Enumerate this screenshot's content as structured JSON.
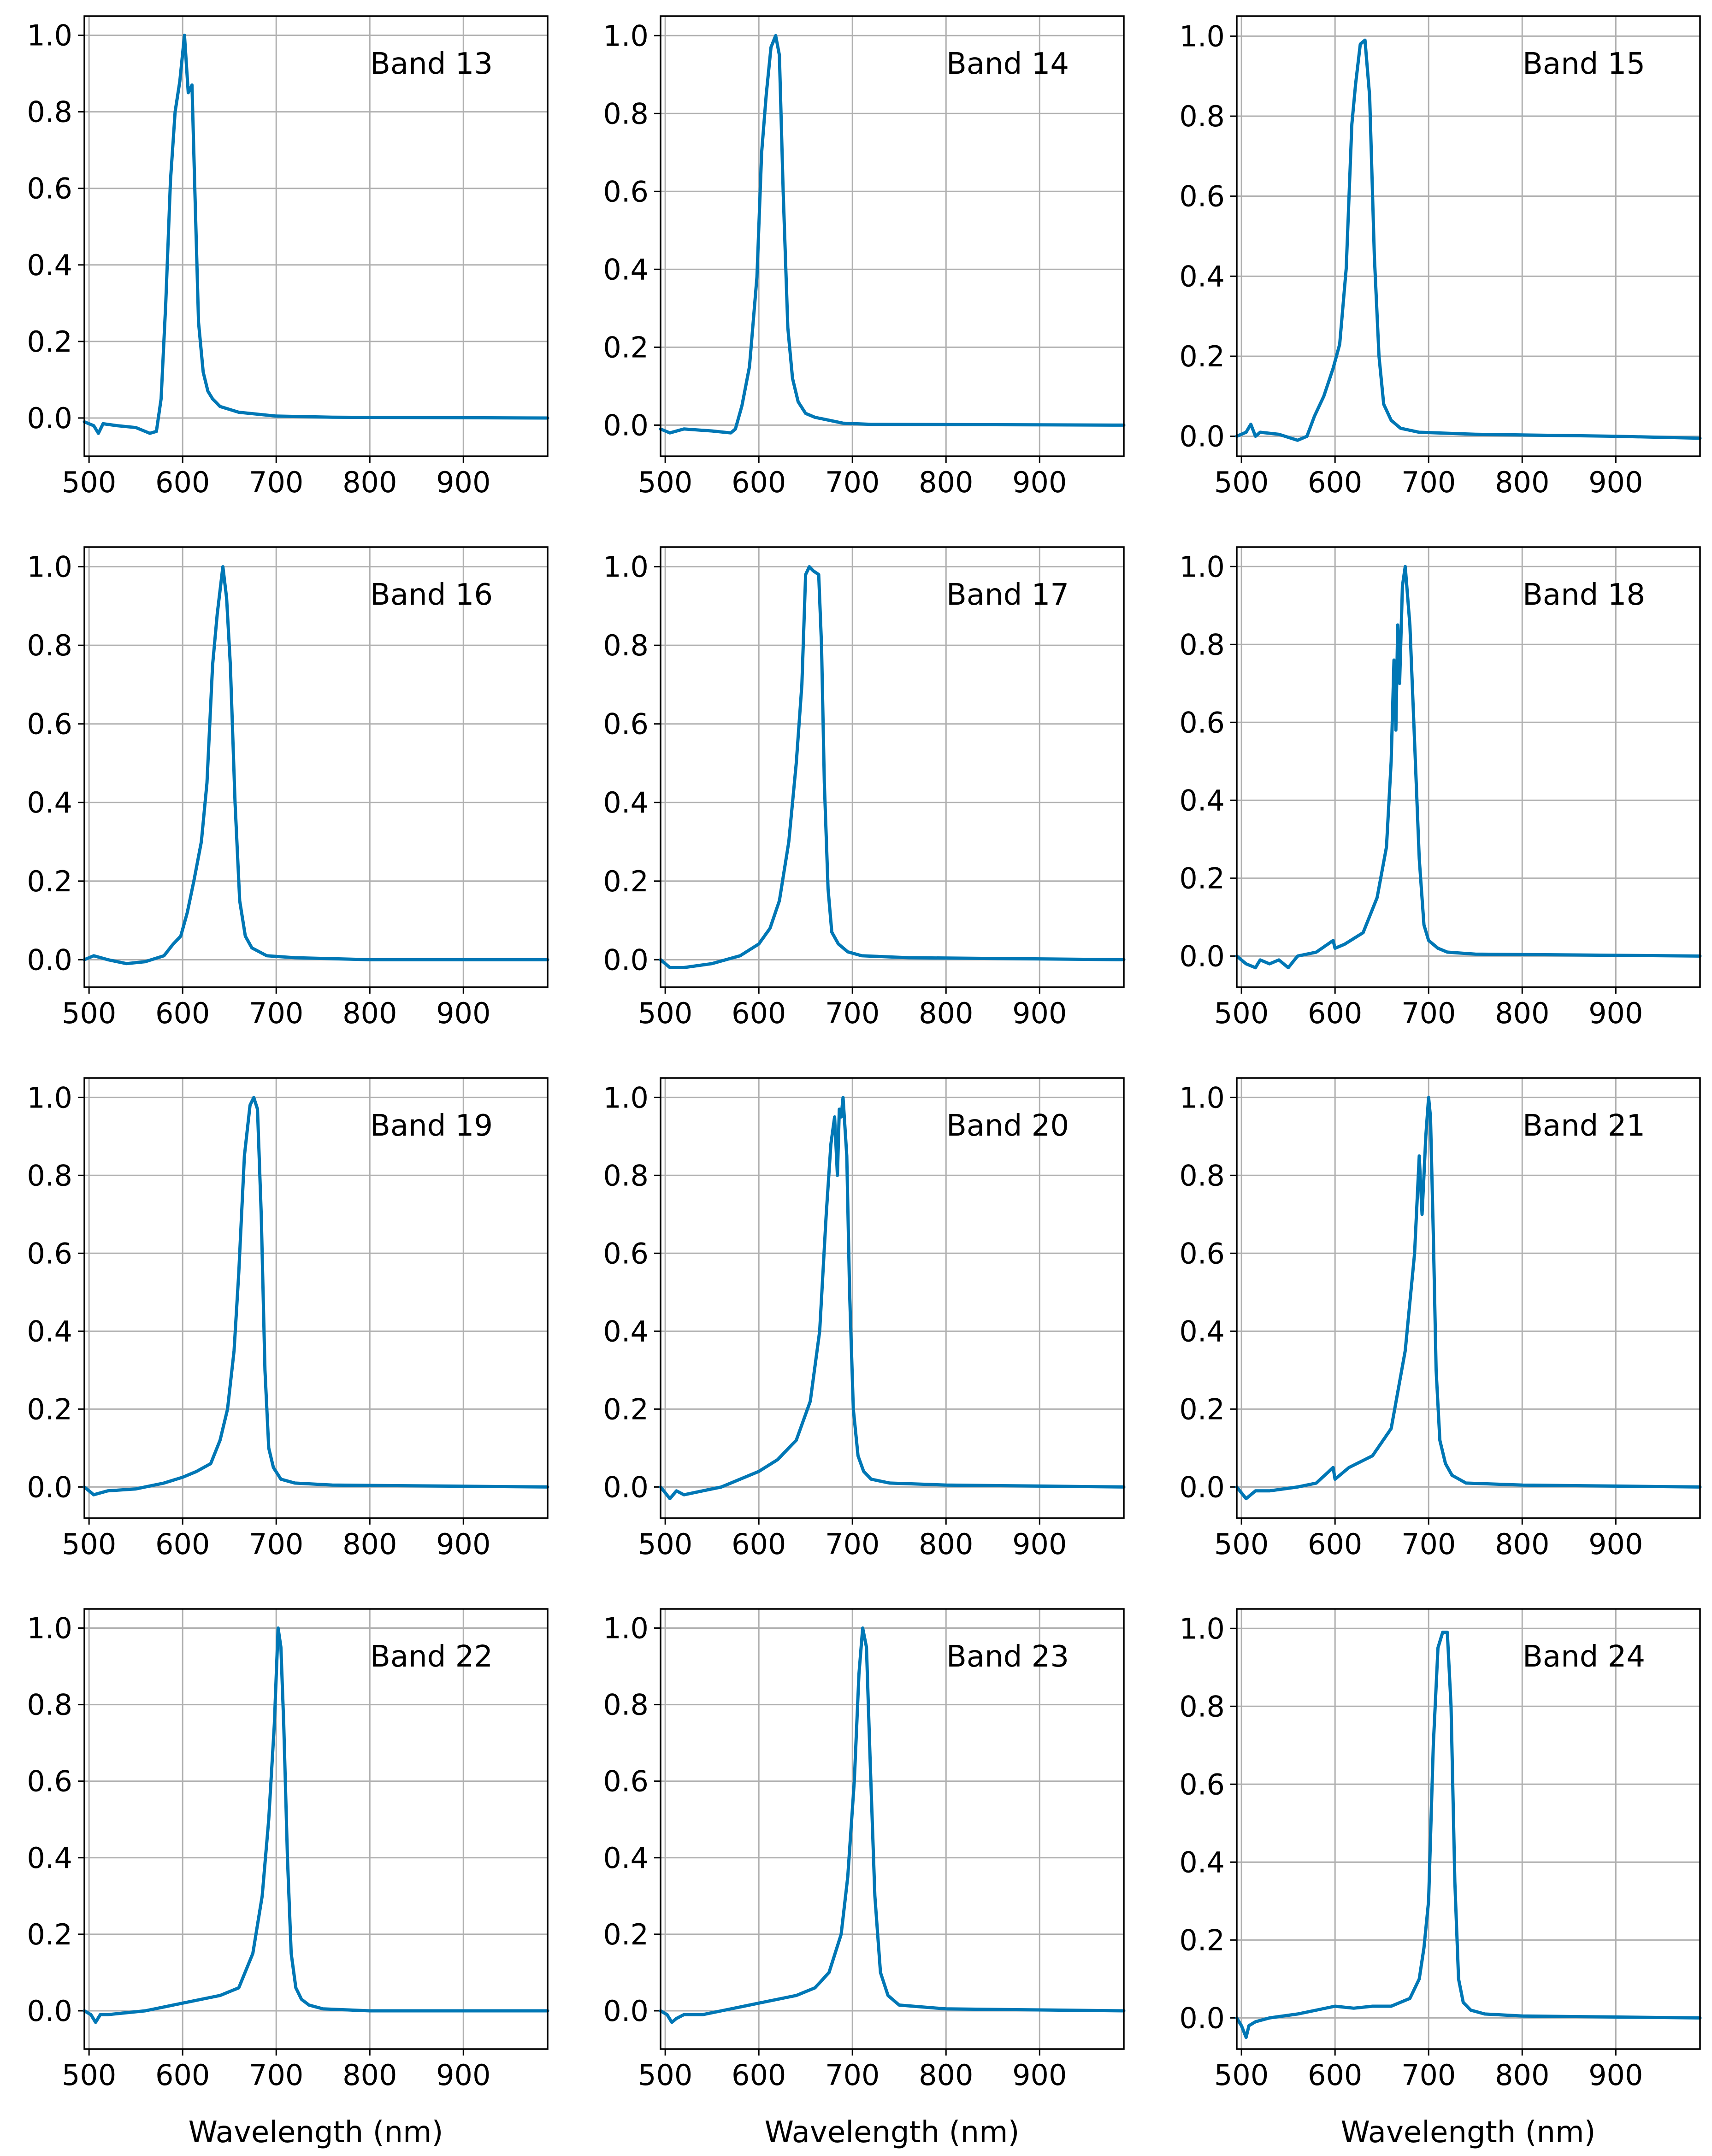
{
  "figure": {
    "xlabel": "Wavelength (nm)",
    "line_color": "#0077b5",
    "grid_color": "#b0b0b0"
  },
  "chart_data": [
    {
      "type": "line",
      "label": "Band 13",
      "xlabel": "",
      "ylabel": "",
      "xlim": [
        495,
        990
      ],
      "ylim": [
        -0.1,
        1.05
      ],
      "xticks": [
        500,
        600,
        700,
        800,
        900
      ],
      "yticks": [
        0.0,
        0.2,
        0.4,
        0.6,
        0.8,
        1.0
      ],
      "grid": true,
      "x": [
        495,
        505,
        510,
        515,
        530,
        550,
        565,
        572,
        577,
        582,
        587,
        592,
        597,
        602,
        606,
        610,
        613,
        617,
        622,
        627,
        632,
        640,
        660,
        680,
        700,
        760,
        990
      ],
      "y": [
        -0.01,
        -0.02,
        -0.04,
        -0.015,
        -0.02,
        -0.025,
        -0.04,
        -0.035,
        0.05,
        0.3,
        0.62,
        0.8,
        0.88,
        1.0,
        0.85,
        0.87,
        0.6,
        0.25,
        0.12,
        0.07,
        0.05,
        0.03,
        0.015,
        0.01,
        0.005,
        0.002,
        0.0
      ]
    },
    {
      "type": "line",
      "label": "Band 14",
      "xlabel": "",
      "ylabel": "",
      "xlim": [
        495,
        990
      ],
      "ylim": [
        -0.08,
        1.05
      ],
      "xticks": [
        500,
        600,
        700,
        800,
        900
      ],
      "yticks": [
        0.0,
        0.2,
        0.4,
        0.6,
        0.8,
        1.0
      ],
      "grid": true,
      "x": [
        495,
        505,
        520,
        550,
        570,
        575,
        582,
        590,
        598,
        603,
        608,
        613,
        618,
        622,
        626,
        631,
        636,
        642,
        650,
        660,
        670,
        690,
        720,
        990
      ],
      "y": [
        -0.01,
        -0.02,
        -0.01,
        -0.015,
        -0.02,
        -0.01,
        0.05,
        0.15,
        0.38,
        0.7,
        0.85,
        0.97,
        1.0,
        0.95,
        0.6,
        0.25,
        0.12,
        0.06,
        0.03,
        0.02,
        0.015,
        0.005,
        0.002,
        0.0
      ]
    },
    {
      "type": "line",
      "label": "Band 15",
      "xlabel": "",
      "ylabel": "",
      "xlim": [
        495,
        990
      ],
      "ylim": [
        -0.05,
        1.05
      ],
      "xticks": [
        500,
        600,
        700,
        800,
        900
      ],
      "yticks": [
        0.0,
        0.2,
        0.4,
        0.6,
        0.8,
        1.0
      ],
      "grid": true,
      "x": [
        495,
        505,
        510,
        515,
        520,
        540,
        560,
        570,
        578,
        588,
        598,
        605,
        612,
        618,
        622,
        627,
        632,
        637,
        642,
        647,
        652,
        660,
        670,
        690,
        750,
        900,
        990
      ],
      "y": [
        0.0,
        0.01,
        0.03,
        0.0,
        0.01,
        0.005,
        -0.01,
        0.0,
        0.05,
        0.1,
        0.17,
        0.23,
        0.42,
        0.78,
        0.88,
        0.98,
        0.99,
        0.85,
        0.45,
        0.2,
        0.08,
        0.04,
        0.02,
        0.01,
        0.005,
        0.0,
        -0.005
      ]
    },
    {
      "type": "line",
      "label": "Band 16",
      "xlabel": "",
      "ylabel": "",
      "xlim": [
        495,
        990
      ],
      "ylim": [
        -0.07,
        1.05
      ],
      "xticks": [
        500,
        600,
        700,
        800,
        900
      ],
      "yticks": [
        0.0,
        0.2,
        0.4,
        0.6,
        0.8,
        1.0
      ],
      "grid": true,
      "x": [
        495,
        505,
        520,
        540,
        560,
        580,
        590,
        598,
        605,
        612,
        620,
        626,
        632,
        637,
        643,
        647,
        651,
        656,
        661,
        667,
        674,
        690,
        720,
        800,
        990
      ],
      "y": [
        0.0,
        0.01,
        0.0,
        -0.01,
        -0.005,
        0.01,
        0.04,
        0.06,
        0.12,
        0.2,
        0.3,
        0.45,
        0.75,
        0.88,
        1.0,
        0.92,
        0.75,
        0.4,
        0.15,
        0.06,
        0.03,
        0.01,
        0.005,
        0.0,
        0.0
      ]
    },
    {
      "type": "line",
      "label": "Band 17",
      "xlabel": "",
      "ylabel": "",
      "xlim": [
        495,
        990
      ],
      "ylim": [
        -0.07,
        1.05
      ],
      "xticks": [
        500,
        600,
        700,
        800,
        900
      ],
      "yticks": [
        0.0,
        0.2,
        0.4,
        0.6,
        0.8,
        1.0
      ],
      "grid": true,
      "x": [
        495,
        505,
        520,
        550,
        580,
        600,
        612,
        622,
        632,
        640,
        646,
        650,
        654,
        658,
        664,
        667,
        670,
        674,
        678,
        685,
        695,
        710,
        760,
        990
      ],
      "y": [
        0.0,
        -0.02,
        -0.02,
        -0.01,
        0.01,
        0.04,
        0.08,
        0.15,
        0.3,
        0.5,
        0.7,
        0.98,
        1.0,
        0.99,
        0.98,
        0.8,
        0.45,
        0.18,
        0.07,
        0.04,
        0.02,
        0.01,
        0.005,
        0.0
      ]
    },
    {
      "type": "line",
      "label": "Band 18",
      "xlabel": "",
      "ylabel": "",
      "xlim": [
        495,
        990
      ],
      "ylim": [
        -0.08,
        1.05
      ],
      "xticks": [
        500,
        600,
        700,
        800,
        900
      ],
      "yticks": [
        0.0,
        0.2,
        0.4,
        0.6,
        0.8,
        1.0
      ],
      "grid": true,
      "x": [
        495,
        505,
        515,
        520,
        530,
        540,
        550,
        560,
        580,
        598,
        600,
        610,
        630,
        645,
        655,
        660,
        663,
        665,
        667,
        669,
        672,
        675,
        680,
        685,
        690,
        695,
        700,
        710,
        720,
        750,
        990
      ],
      "y": [
        0.0,
        -0.02,
        -0.03,
        -0.01,
        -0.02,
        -0.01,
        -0.03,
        0.0,
        0.01,
        0.04,
        0.02,
        0.03,
        0.06,
        0.15,
        0.28,
        0.5,
        0.76,
        0.58,
        0.85,
        0.7,
        0.95,
        1.0,
        0.85,
        0.55,
        0.25,
        0.08,
        0.04,
        0.02,
        0.01,
        0.005,
        0.0
      ]
    },
    {
      "type": "line",
      "label": "Band 19",
      "xlabel": "",
      "ylabel": "",
      "xlim": [
        495,
        990
      ],
      "ylim": [
        -0.08,
        1.05
      ],
      "xticks": [
        500,
        600,
        700,
        800,
        900
      ],
      "yticks": [
        0.0,
        0.2,
        0.4,
        0.6,
        0.8,
        1.0
      ],
      "grid": true,
      "x": [
        495,
        505,
        520,
        550,
        580,
        600,
        615,
        630,
        640,
        648,
        655,
        660,
        666,
        672,
        676,
        680,
        684,
        688,
        692,
        697,
        705,
        720,
        760,
        990
      ],
      "y": [
        0.0,
        -0.02,
        -0.01,
        -0.005,
        0.01,
        0.025,
        0.04,
        0.06,
        0.12,
        0.2,
        0.35,
        0.55,
        0.85,
        0.98,
        1.0,
        0.97,
        0.7,
        0.3,
        0.1,
        0.05,
        0.02,
        0.01,
        0.005,
        0.0
      ]
    },
    {
      "type": "line",
      "label": "Band 20",
      "xlabel": "",
      "ylabel": "",
      "xlim": [
        495,
        990
      ],
      "ylim": [
        -0.08,
        1.05
      ],
      "xticks": [
        500,
        600,
        700,
        800,
        900
      ],
      "yticks": [
        0.0,
        0.2,
        0.4,
        0.6,
        0.8,
        1.0
      ],
      "grid": true,
      "x": [
        495,
        505,
        512,
        520,
        540,
        560,
        580,
        600,
        620,
        640,
        655,
        665,
        672,
        677,
        681,
        684,
        686,
        688,
        690,
        694,
        697,
        701,
        706,
        712,
        720,
        740,
        800,
        990
      ],
      "y": [
        0.0,
        -0.03,
        -0.01,
        -0.02,
        -0.01,
        0.0,
        0.02,
        0.04,
        0.07,
        0.12,
        0.22,
        0.4,
        0.7,
        0.88,
        0.95,
        0.8,
        0.97,
        0.95,
        1.0,
        0.85,
        0.5,
        0.2,
        0.08,
        0.04,
        0.02,
        0.01,
        0.005,
        0.0
      ]
    },
    {
      "type": "line",
      "label": "Band 21",
      "xlabel": "",
      "ylabel": "",
      "xlim": [
        495,
        990
      ],
      "ylim": [
        -0.08,
        1.05
      ],
      "xticks": [
        500,
        600,
        700,
        800,
        900
      ],
      "yticks": [
        0.0,
        0.2,
        0.4,
        0.6,
        0.8,
        1.0
      ],
      "grid": true,
      "x": [
        495,
        505,
        515,
        530,
        560,
        580,
        598,
        600,
        615,
        640,
        660,
        675,
        685,
        690,
        693,
        695,
        697,
        700,
        702,
        705,
        708,
        712,
        718,
        725,
        740,
        800,
        990
      ],
      "y": [
        0.0,
        -0.03,
        -0.01,
        -0.01,
        0.0,
        0.01,
        0.05,
        0.02,
        0.05,
        0.08,
        0.15,
        0.35,
        0.6,
        0.85,
        0.7,
        0.8,
        0.9,
        1.0,
        0.95,
        0.65,
        0.3,
        0.12,
        0.06,
        0.03,
        0.01,
        0.005,
        0.0
      ]
    },
    {
      "type": "line",
      "label": "Band 22",
      "xlabel": "",
      "ylabel": "",
      "xlim": [
        495,
        990
      ],
      "ylim": [
        -0.1,
        1.05
      ],
      "xticks": [
        500,
        600,
        700,
        800,
        900
      ],
      "yticks": [
        0.0,
        0.2,
        0.4,
        0.6,
        0.8,
        1.0
      ],
      "grid": true,
      "x": [
        495,
        502,
        507,
        512,
        520,
        540,
        560,
        580,
        600,
        620,
        640,
        660,
        675,
        685,
        692,
        698,
        702,
        705,
        708,
        712,
        716,
        721,
        727,
        735,
        750,
        800,
        990
      ],
      "y": [
        0.0,
        -0.01,
        -0.03,
        -0.01,
        -0.01,
        -0.005,
        0.0,
        0.01,
        0.02,
        0.03,
        0.04,
        0.06,
        0.15,
        0.3,
        0.5,
        0.75,
        1.0,
        0.95,
        0.75,
        0.4,
        0.15,
        0.06,
        0.03,
        0.015,
        0.005,
        0.0,
        0.0
      ]
    },
    {
      "type": "line",
      "label": "Band 23",
      "xlabel": "",
      "ylabel": "",
      "xlim": [
        495,
        990
      ],
      "ylim": [
        -0.1,
        1.05
      ],
      "xticks": [
        500,
        600,
        700,
        800,
        900
      ],
      "yticks": [
        0.0,
        0.2,
        0.4,
        0.6,
        0.8,
        1.0
      ],
      "grid": true,
      "x": [
        495,
        502,
        507,
        512,
        520,
        540,
        560,
        580,
        600,
        620,
        640,
        660,
        675,
        688,
        695,
        702,
        707,
        711,
        715,
        719,
        724,
        730,
        738,
        750,
        800,
        990
      ],
      "y": [
        0.0,
        -0.01,
        -0.03,
        -0.02,
        -0.01,
        -0.01,
        0.0,
        0.01,
        0.02,
        0.03,
        0.04,
        0.06,
        0.1,
        0.2,
        0.35,
        0.6,
        0.88,
        1.0,
        0.95,
        0.65,
        0.3,
        0.1,
        0.04,
        0.015,
        0.005,
        0.0
      ]
    },
    {
      "type": "line",
      "label": "Band 24",
      "xlabel": "",
      "ylabel": "",
      "xlim": [
        495,
        990
      ],
      "ylim": [
        -0.08,
        1.05
      ],
      "xticks": [
        500,
        600,
        700,
        800,
        900
      ],
      "yticks": [
        0.0,
        0.2,
        0.4,
        0.6,
        0.8,
        1.0
      ],
      "grid": true,
      "x": [
        495,
        500,
        505,
        508,
        515,
        530,
        560,
        580,
        600,
        620,
        640,
        660,
        680,
        690,
        695,
        700,
        705,
        710,
        715,
        720,
        724,
        728,
        732,
        737,
        745,
        760,
        800,
        990
      ],
      "y": [
        0.0,
        -0.02,
        -0.05,
        -0.02,
        -0.01,
        0.0,
        0.01,
        0.02,
        0.03,
        0.025,
        0.03,
        0.03,
        0.05,
        0.1,
        0.18,
        0.3,
        0.7,
        0.95,
        0.99,
        0.99,
        0.8,
        0.35,
        0.1,
        0.04,
        0.02,
        0.01,
        0.005,
        0.0
      ]
    }
  ]
}
